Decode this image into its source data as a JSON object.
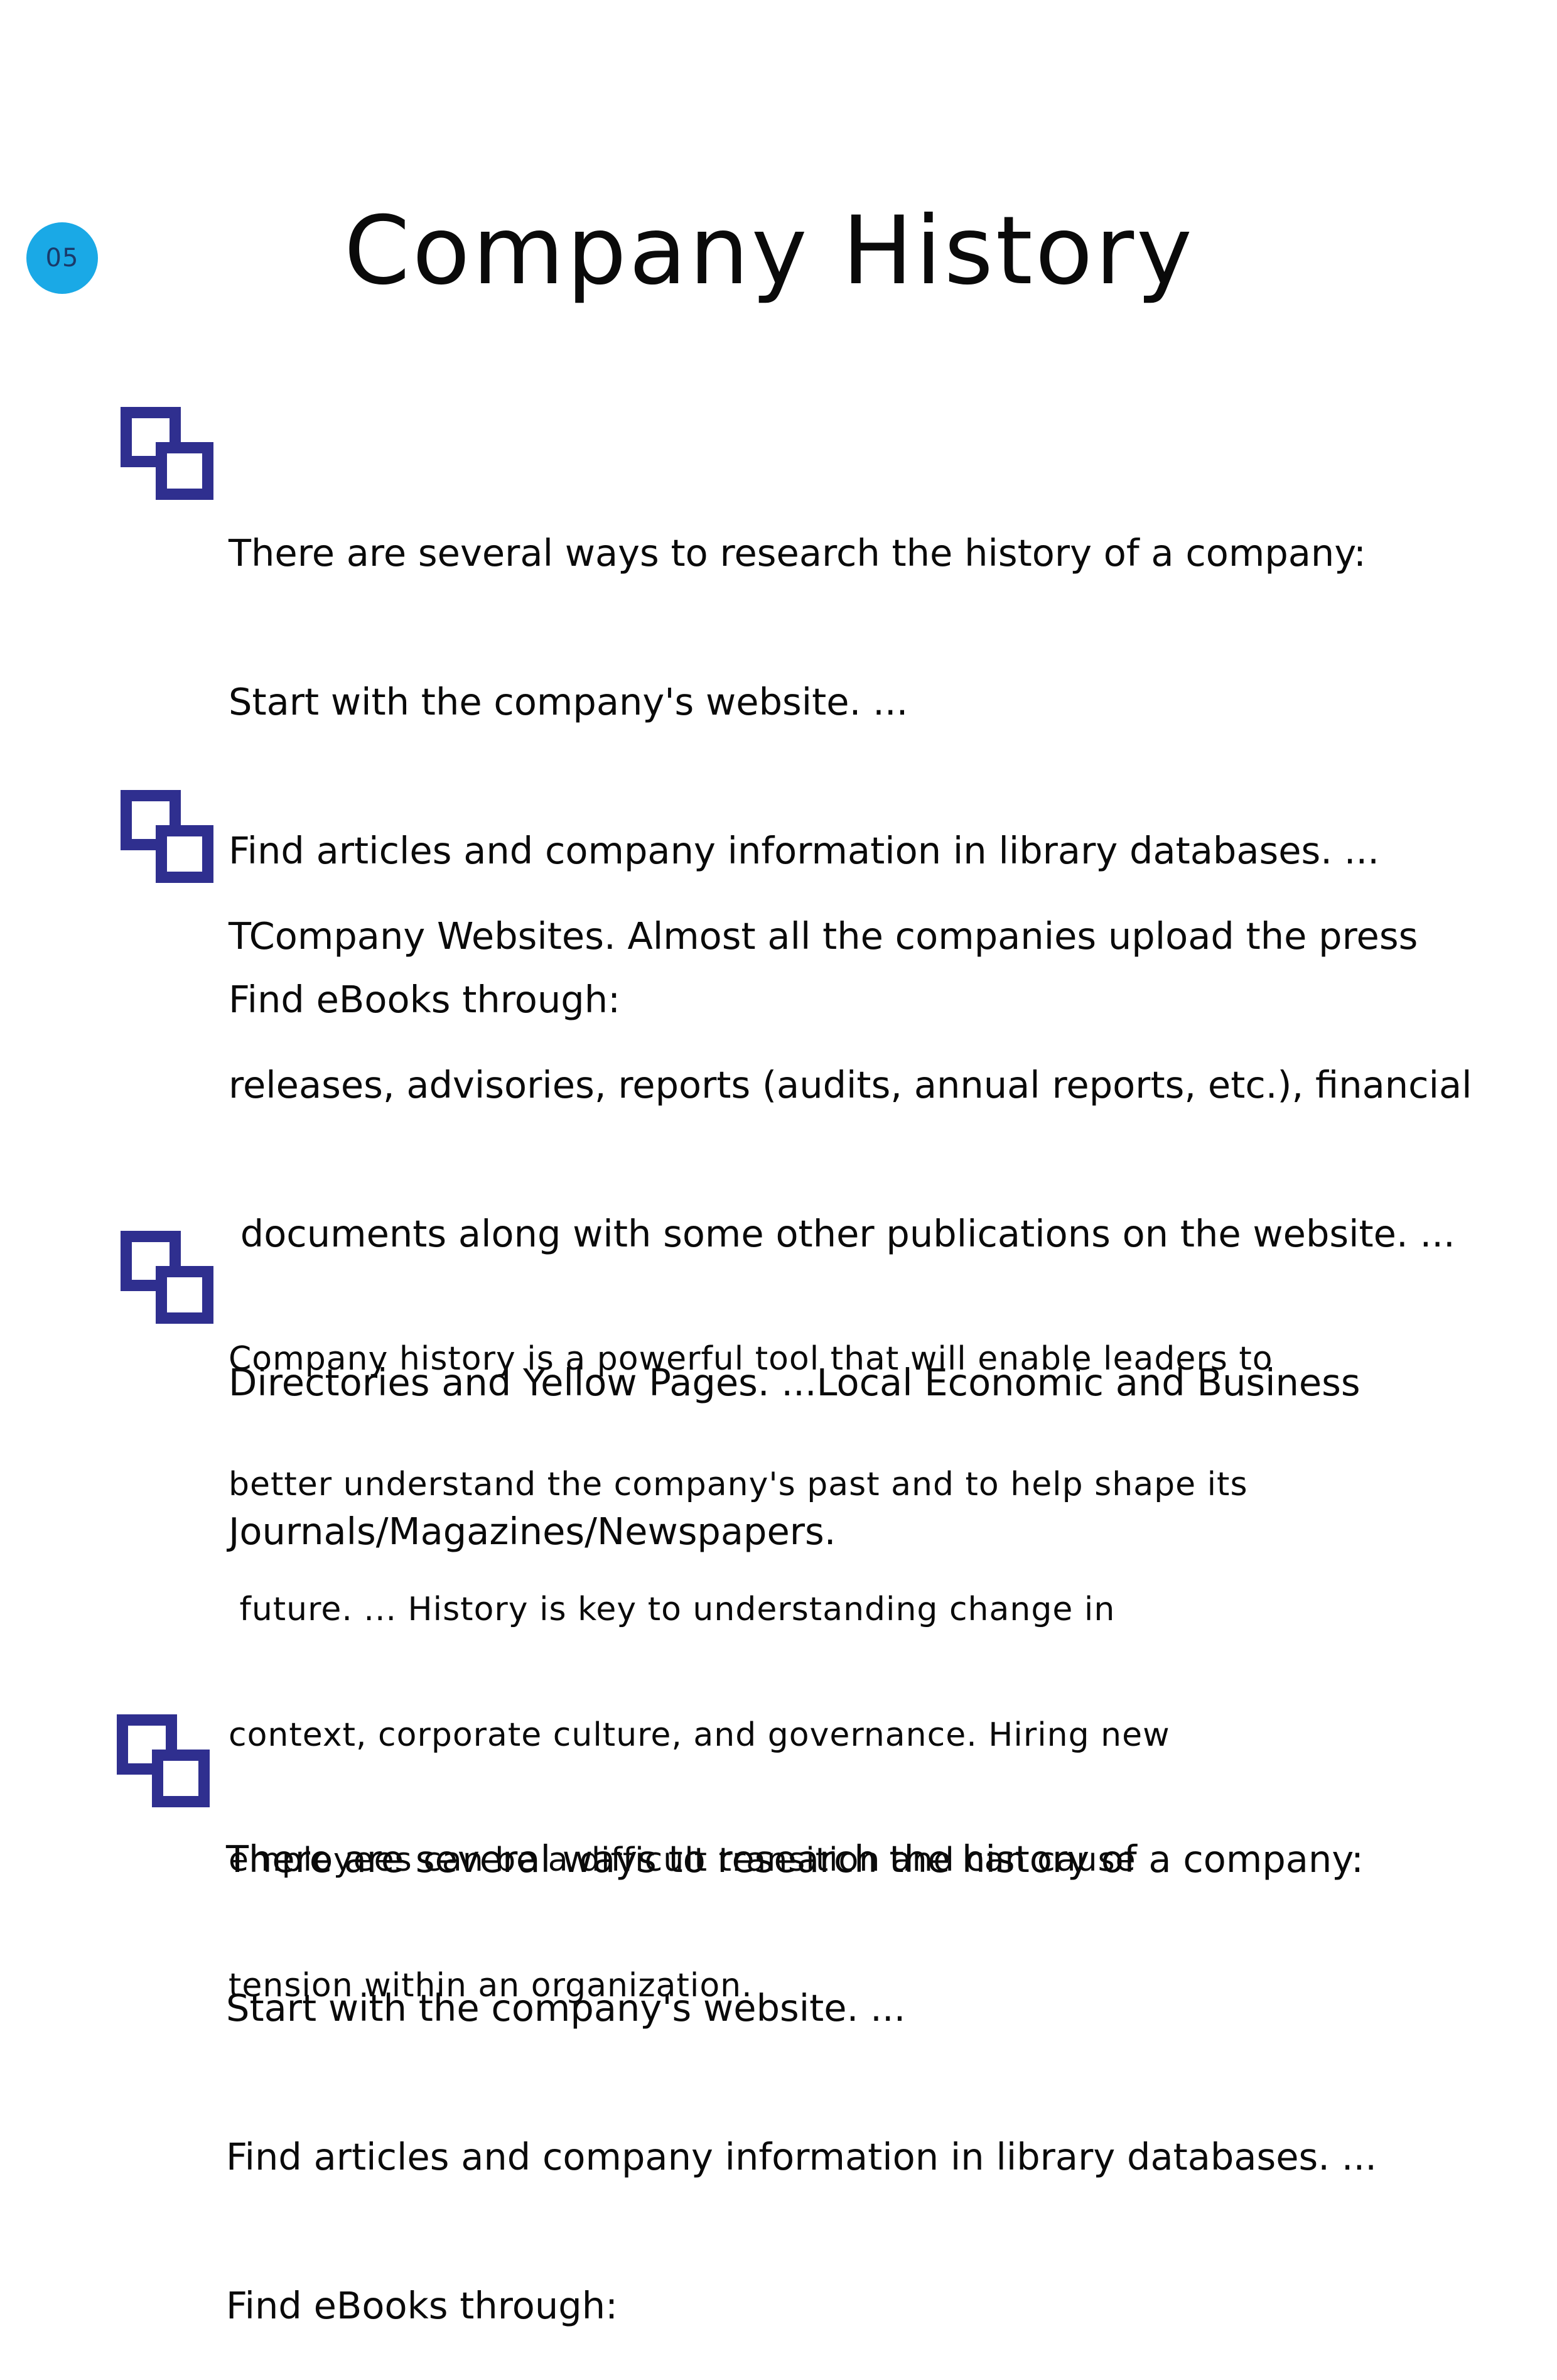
{
  "page": {
    "number": "05",
    "title": "Company History"
  },
  "colors": {
    "badge": "#1aa9e6",
    "icon": "#2f2f8f",
    "text": "#0a0a0a"
  },
  "sections": [
    {
      "icon": "overlapping-squares-icon",
      "lines": [
        "There are several ways to research the history of a company:",
        "Start with the company's website. ...",
        "Find articles and company information in library databases. ...",
        "Find eBooks through:"
      ]
    },
    {
      "icon": "overlapping-squares-icon",
      "lines": [
        "TCompany Websites. Almost all the companies upload the press",
        "releases, advisories, reports (audits, annual reports, etc.), financial",
        " documents along with some other publications on the website. ...",
        "Directories and Yellow Pages. ...Local Economic and Business",
        "Journals/Magazines/Newspapers."
      ]
    },
    {
      "icon": "overlapping-squares-icon",
      "lines": [
        "Company history is a powerful tool that will enable leaders to",
        "better understand the company's past and to help shape its",
        " future. ... History is key to understanding change in",
        "context, corporate culture, and governance. Hiring new",
        "employees can be a difficult transition and can cause",
        "tension within an organization."
      ]
    },
    {
      "icon": "overlapping-squares-icon",
      "lines": [
        "There are several ways to research the history of a company:",
        "Start with the company's website. ...",
        "Find articles and company information in library databases. ...",
        "Find eBooks through:"
      ]
    }
  ]
}
